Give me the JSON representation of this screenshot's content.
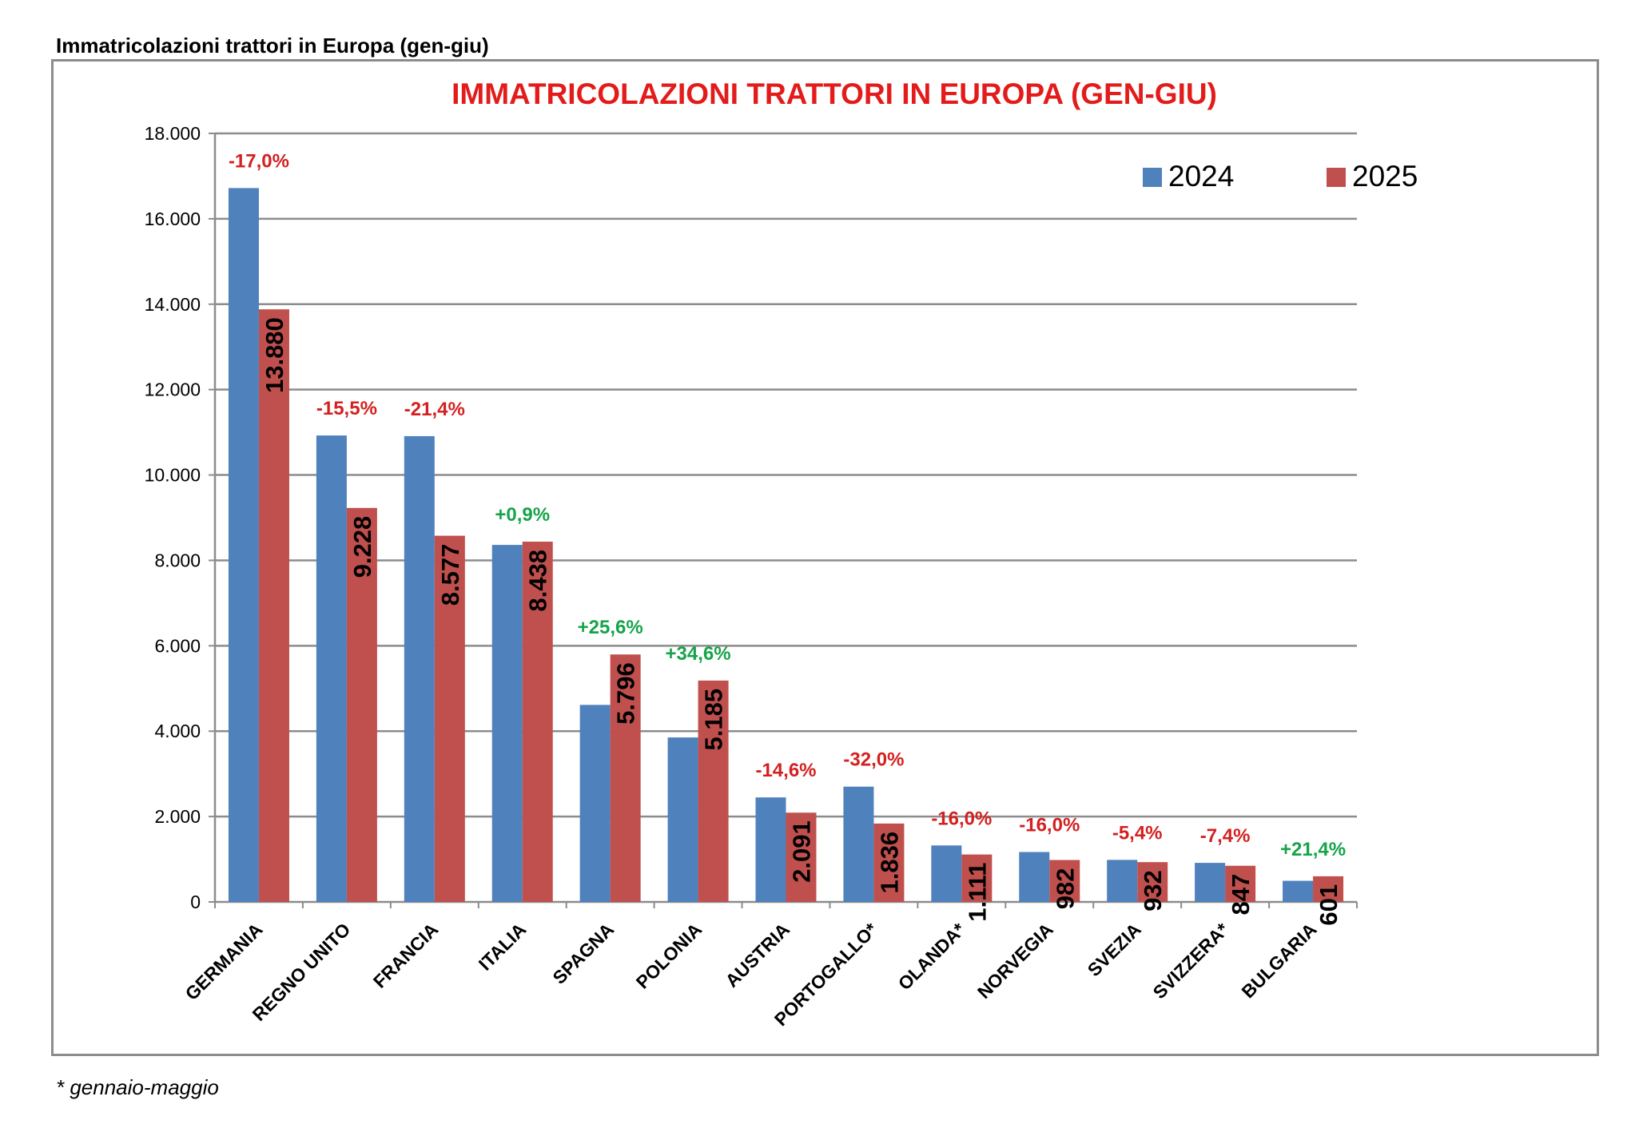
{
  "page": {
    "heading": "Immatricolazioni trattori in Europa (gen-giu)",
    "footnote": "* gennaio-maggio"
  },
  "colors": {
    "series_2024": "#4f81bd",
    "series_2025": "#c0504d",
    "title": "#e31b1b",
    "negative": "#d42020",
    "positive": "#17a34a",
    "gridline": "#8c8c8c"
  },
  "chart_data": {
    "type": "bar",
    "title": "IMMATRICOLAZIONI TRATTORI IN EUROPA (GEN-GIU)",
    "xlabel": "",
    "ylabel": "",
    "ylim": [
      0,
      18000
    ],
    "yticks": [
      0,
      2000,
      4000,
      6000,
      8000,
      10000,
      12000,
      14000,
      16000,
      18000
    ],
    "ytick_labels": [
      "0",
      "2.000",
      "4.000",
      "6.000",
      "8.000",
      "10.000",
      "12.000",
      "14.000",
      "16.000",
      "18.000"
    ],
    "grid": true,
    "legend_position": "top-right",
    "categories": [
      "GERMANIA",
      "REGNO UNITO",
      "FRANCIA",
      "ITALIA",
      "SPAGNA",
      "POLONIA",
      "AUSTRIA",
      "PORTOGALLO*",
      "OLANDA*",
      "NORVEGIA",
      "SVEZIA",
      "SVIZZERA*",
      "BULGARIA"
    ],
    "series": [
      {
        "name": "2024",
        "values": [
          16720,
          10925,
          10910,
          8362,
          4615,
          3852,
          2448,
          2700,
          1323,
          1169,
          985,
          915,
          495
        ]
      },
      {
        "name": "2025",
        "values": [
          13880,
          9228,
          8577,
          8438,
          5796,
          5185,
          2091,
          1836,
          1111,
          982,
          932,
          847,
          601
        ]
      }
    ],
    "data_labels_2025": [
      "13.880",
      "9.228",
      "8.577",
      "8.438",
      "5.796",
      "5.185",
      "2.091",
      "1.836",
      "1.111",
      "982",
      "932",
      "847",
      "601"
    ],
    "pct_changes": [
      "-17,0%",
      "-15,5%",
      "-21,4%",
      "+0,9%",
      "+25,6%",
      "+34,6%",
      "-14,6%",
      "-32,0%",
      "-16,0%",
      "-16,0%",
      "-5,4%",
      "-7,4%",
      "+21,4%"
    ]
  }
}
